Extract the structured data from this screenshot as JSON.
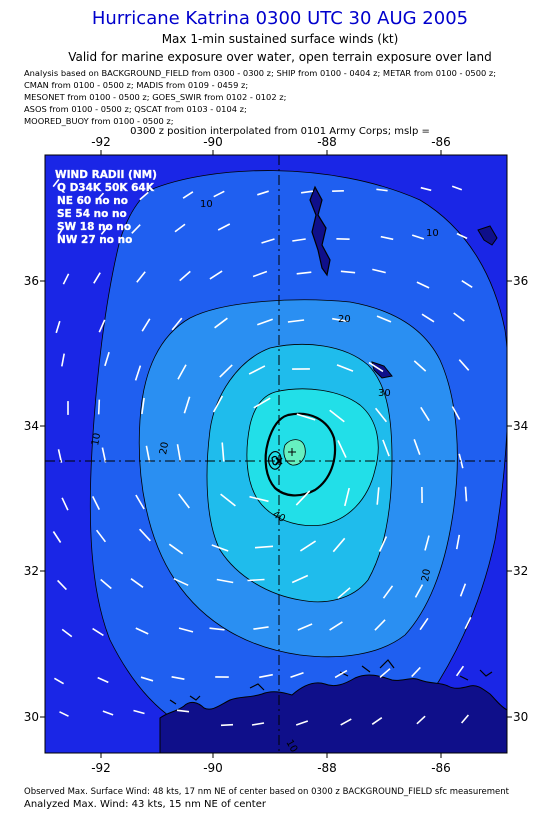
{
  "header": {
    "title": "Hurricane Katrina 0300 UTC 30 AUG 2005",
    "subtitle": "Max 1-min sustained surface winds (kt)",
    "valid": "Valid for marine exposure over water, open terrain exposure over land",
    "analysis_lines": [
      "Analysis based on  BACKGROUND_FIELD from 0300 - 0300 z;  SHIP from 0100 - 0404 z;  METAR from 0100 - 0500 z;",
      "CMAN from 0100 - 0500 z;  MADIS from 0109 - 0459 z;",
      "MESONET from 0100 - 0500 z;  GOES_SWIR from 0102 - 0102 z;",
      "ASOS from 0100 - 0500 z;  QSCAT from 0103 - 0104 z;",
      "MOORED_BUOY from 0100 - 0500 z;"
    ],
    "interp": "0300 z position interpolated from 0101 Army Corps; mslp ="
  },
  "wind_radii": {
    "title": "WIND RADII (NM)",
    "header_row": "Q D34K 50K 64K",
    "rows": [
      "NE 60 no no",
      "SE 54 no no",
      "SW 18 no no",
      "NW 27 no no"
    ]
  },
  "map": {
    "lon_ticks": [
      "-92",
      "-90",
      "-88",
      "-86"
    ],
    "lat_ticks": [
      "36",
      "34",
      "32",
      "30"
    ],
    "contour_labels": [
      "10",
      "10",
      "10",
      "20",
      "20",
      "20",
      "30",
      "40",
      "10"
    ],
    "colors": {
      "outer": "#1a26e6",
      "c10": "#1f5ff0",
      "c20": "#2a8ff2",
      "c30": "#1fbcec",
      "c40": "#22dfe8",
      "c45": "#66f0c0",
      "land": "#0f0f8a",
      "coast": "#000000",
      "wind": "#ffffff"
    }
  },
  "footer": {
    "observed": "Observed Max. Surface Wind: 48 kts, 17 nm NE of center based on 0300 z BACKGROUND_FIELD sfc measurement",
    "analyzed": "Analyzed Max. Wind: 43 kts, 15 nm NE of center"
  }
}
